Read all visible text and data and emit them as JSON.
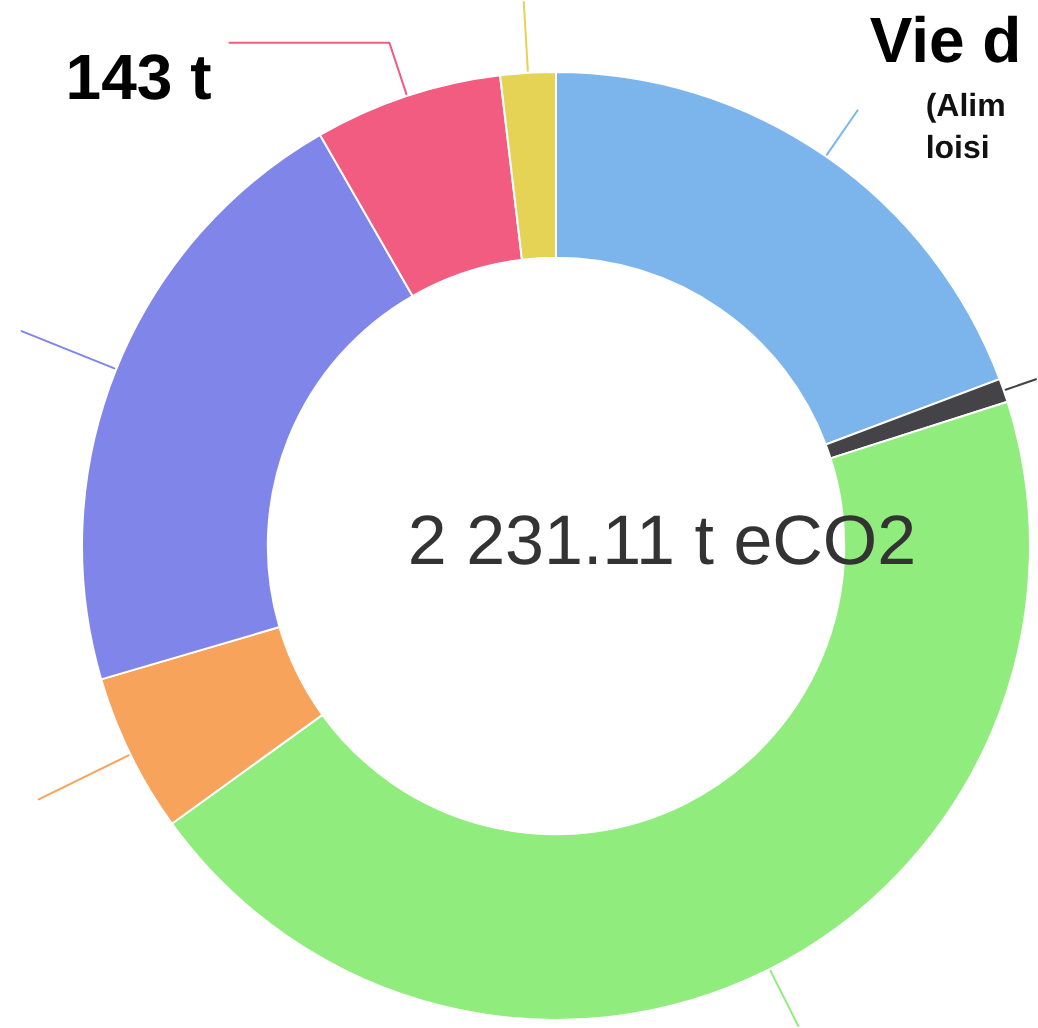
{
  "chart_data": {
    "type": "donut",
    "categories": [
      "Vie d",
      null,
      null,
      null,
      null,
      null,
      null
    ],
    "values": [
      430,
      18,
      1003,
      121,
      474,
      143,
      42
    ],
    "colors": [
      "#7cb5ec",
      "#434348",
      "#90ed7d",
      "#f7a35c",
      "#8085e9",
      "#f15c80",
      "#e4d354"
    ],
    "value_labels": [
      null,
      null,
      null,
      null,
      null,
      "143 t",
      null
    ],
    "annotations": [
      "2 231.11 t eCO2",
      "(Alim",
      "loisi"
    ]
  }
}
